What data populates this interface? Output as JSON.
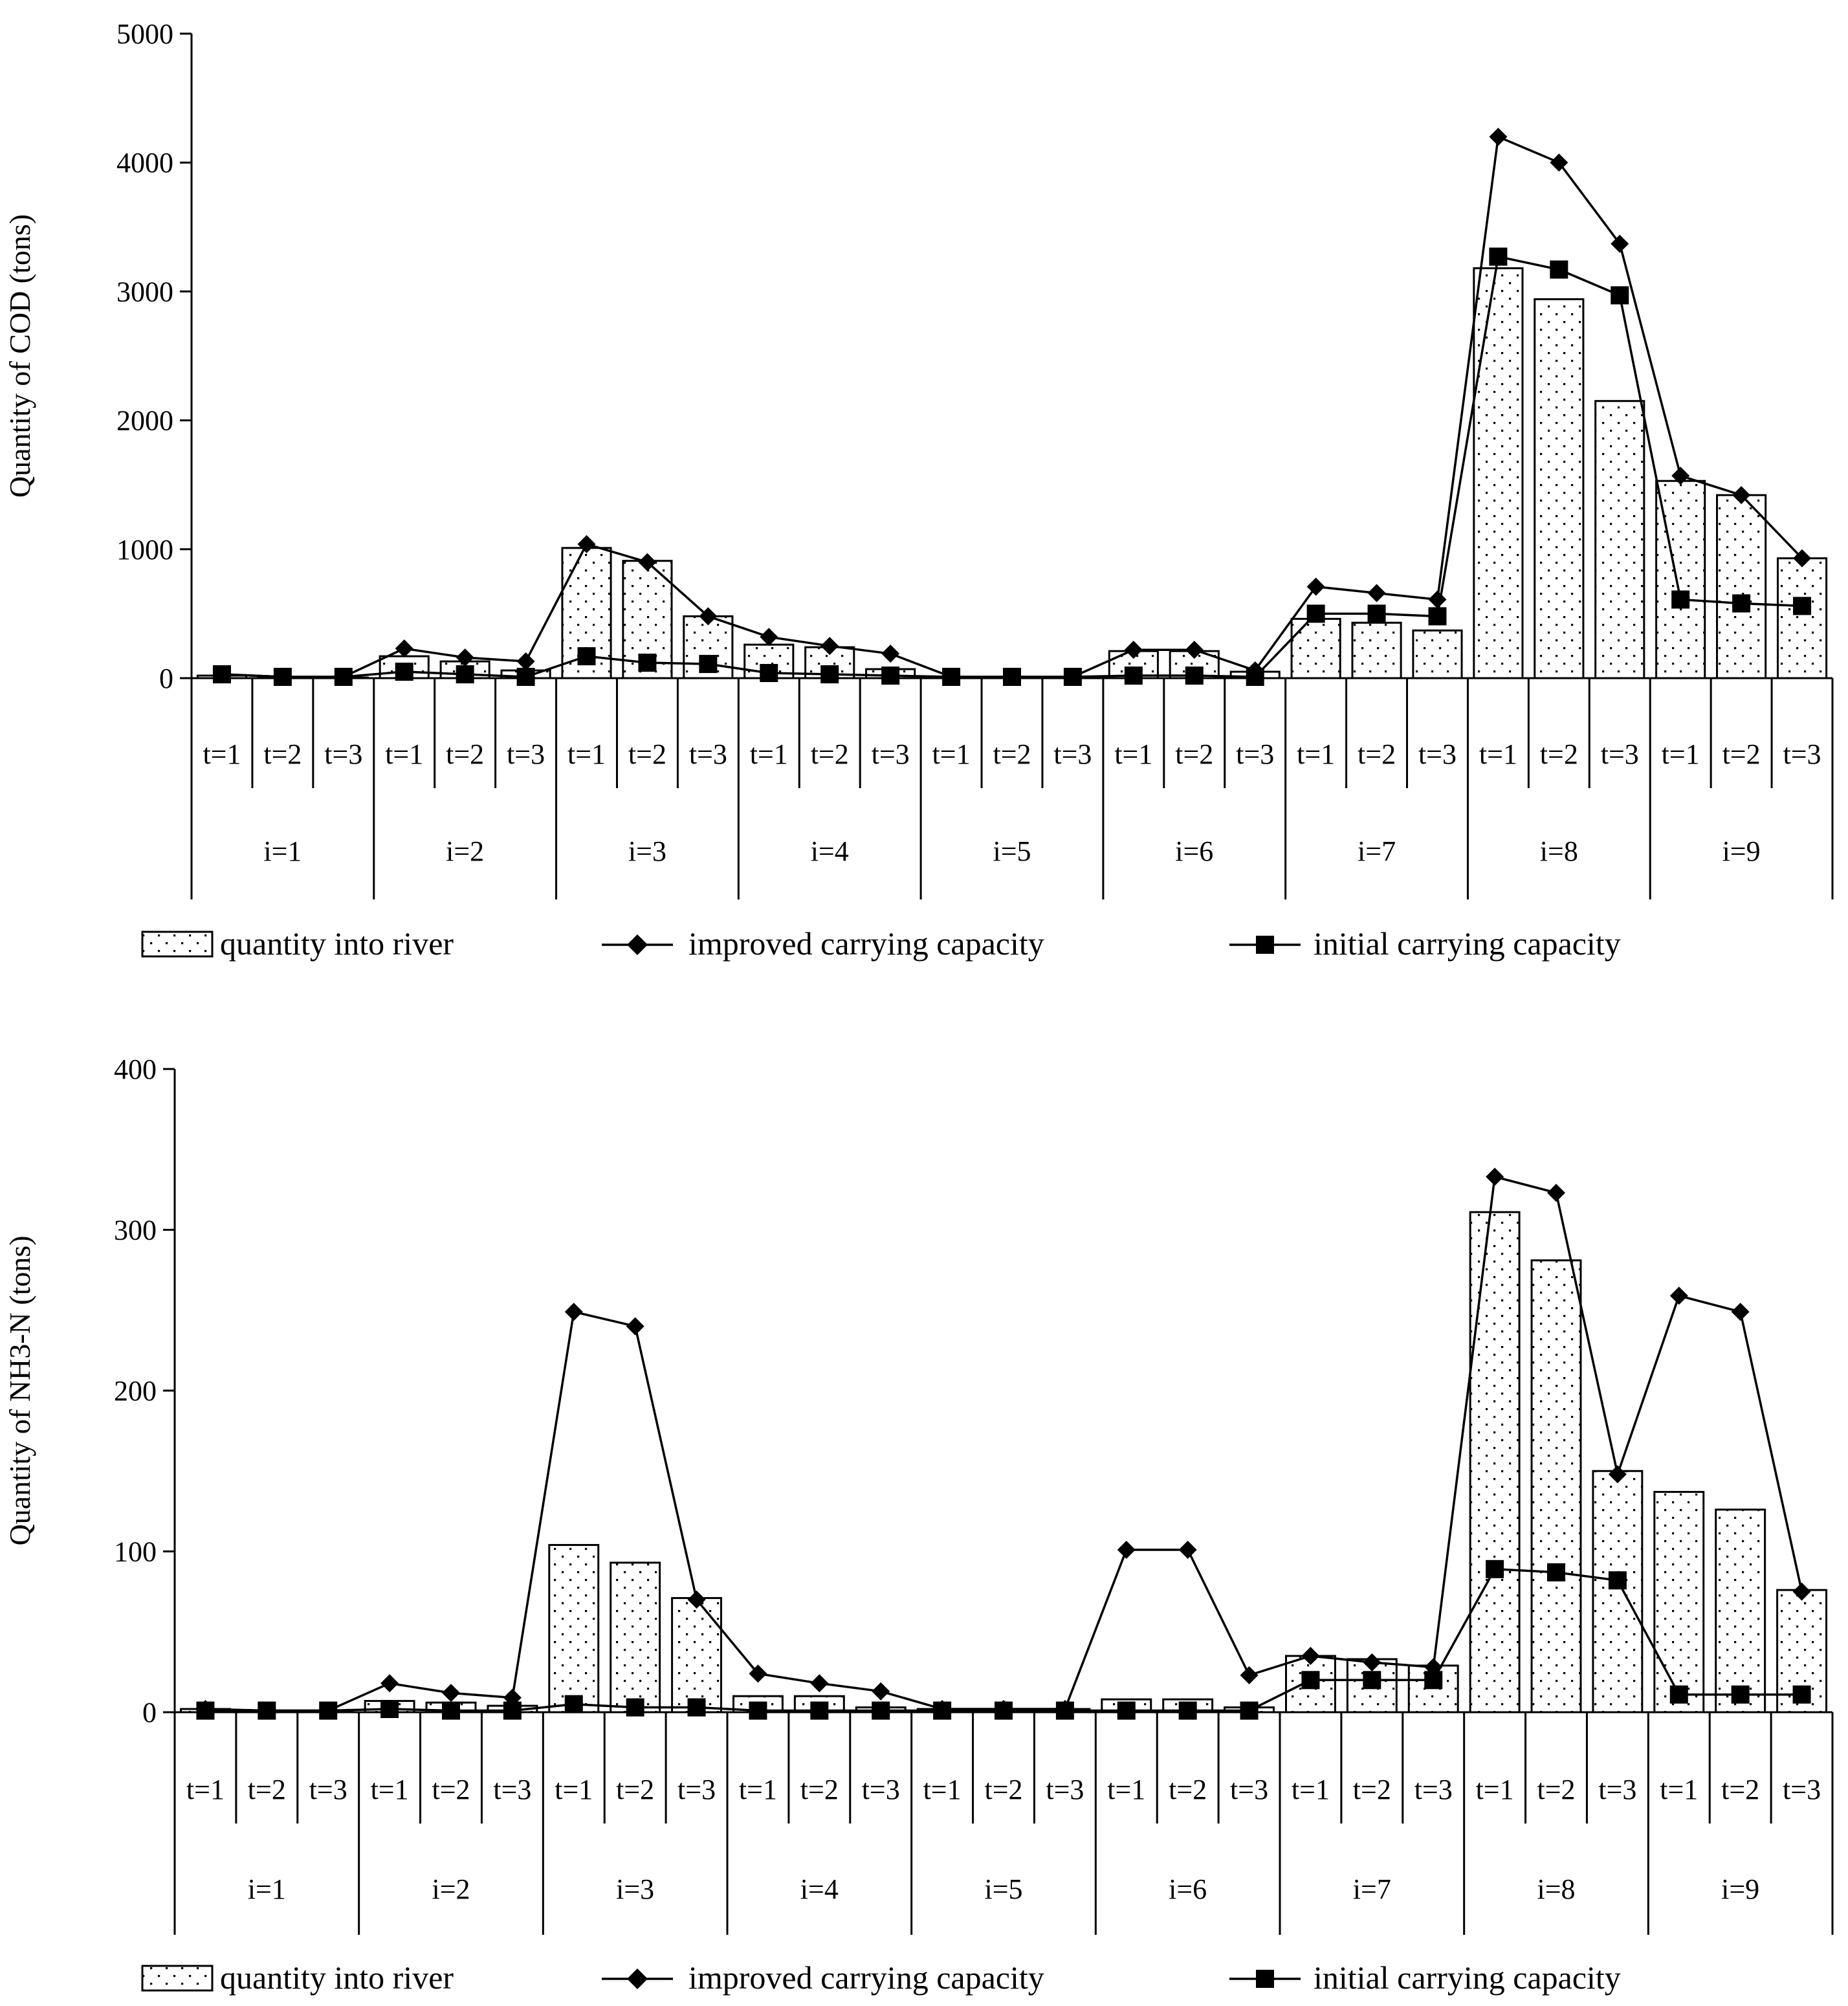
{
  "chart_data": [
    {
      "type": "bar",
      "ylabel": "Quantity of COD (tons)",
      "ylim": [
        0,
        5000
      ],
      "yticks": [
        0,
        1000,
        2000,
        3000,
        4000,
        5000
      ],
      "periods": [
        "t=1",
        "t=2",
        "t=3"
      ],
      "groups": [
        "i=1",
        "i=2",
        "i=3",
        "i=4",
        "i=5",
        "i=6",
        "i=7",
        "i=8",
        "i=9"
      ],
      "series": [
        {
          "name": "quantity into river",
          "kind": "bar",
          "values": [
            20,
            5,
            5,
            170,
            130,
            60,
            1010,
            910,
            480,
            260,
            240,
            70,
            5,
            5,
            5,
            210,
            210,
            50,
            460,
            430,
            370,
            3180,
            2940,
            2150,
            1530,
            1420,
            930
          ]
        },
        {
          "name": "improved carrying capacity",
          "kind": "line-diamond",
          "values": [
            30,
            10,
            10,
            230,
            160,
            130,
            1040,
            900,
            480,
            320,
            250,
            190,
            10,
            10,
            10,
            220,
            220,
            60,
            710,
            660,
            610,
            4200,
            4000,
            3370,
            1570,
            1420,
            930
          ]
        },
        {
          "name": "initial carrying capacity",
          "kind": "line-square",
          "values": [
            30,
            10,
            10,
            50,
            30,
            10,
            170,
            120,
            110,
            40,
            30,
            20,
            10,
            10,
            10,
            20,
            20,
            10,
            500,
            500,
            480,
            3270,
            3170,
            2970,
            610,
            580,
            560
          ]
        }
      ]
    },
    {
      "type": "bar",
      "ylabel": "Quantity of NH3-N (tons)",
      "ylim": [
        0,
        400
      ],
      "yticks": [
        0,
        100,
        200,
        300,
        400
      ],
      "periods": [
        "t=1",
        "t=2",
        "t=3"
      ],
      "groups": [
        "i=1",
        "i=2",
        "i=3",
        "i=4",
        "i=5",
        "i=6",
        "i=7",
        "i=8",
        "i=9"
      ],
      "series": [
        {
          "name": "quantity into river",
          "kind": "bar",
          "values": [
            2,
            1,
            1,
            7,
            6,
            4,
            104,
            93,
            71,
            10,
            10,
            3,
            2,
            2,
            2,
            8,
            8,
            3,
            35,
            33,
            29,
            311,
            281,
            150,
            137,
            126,
            76
          ]
        },
        {
          "name": "improved carrying capacity",
          "kind": "line-diamond",
          "values": [
            2,
            1,
            1,
            18,
            12,
            9,
            249,
            240,
            70,
            24,
            18,
            13,
            2,
            2,
            2,
            101,
            101,
            23,
            35,
            31,
            28,
            333,
            323,
            148,
            259,
            249,
            75
          ]
        },
        {
          "name": "initial carrying capacity",
          "kind": "line-square",
          "values": [
            1,
            1,
            1,
            2,
            1,
            1,
            5,
            3,
            3,
            1,
            1,
            1,
            1,
            1,
            1,
            1,
            1,
            1,
            20,
            20,
            20,
            89,
            87,
            82,
            11,
            11,
            11
          ]
        }
      ]
    }
  ]
}
